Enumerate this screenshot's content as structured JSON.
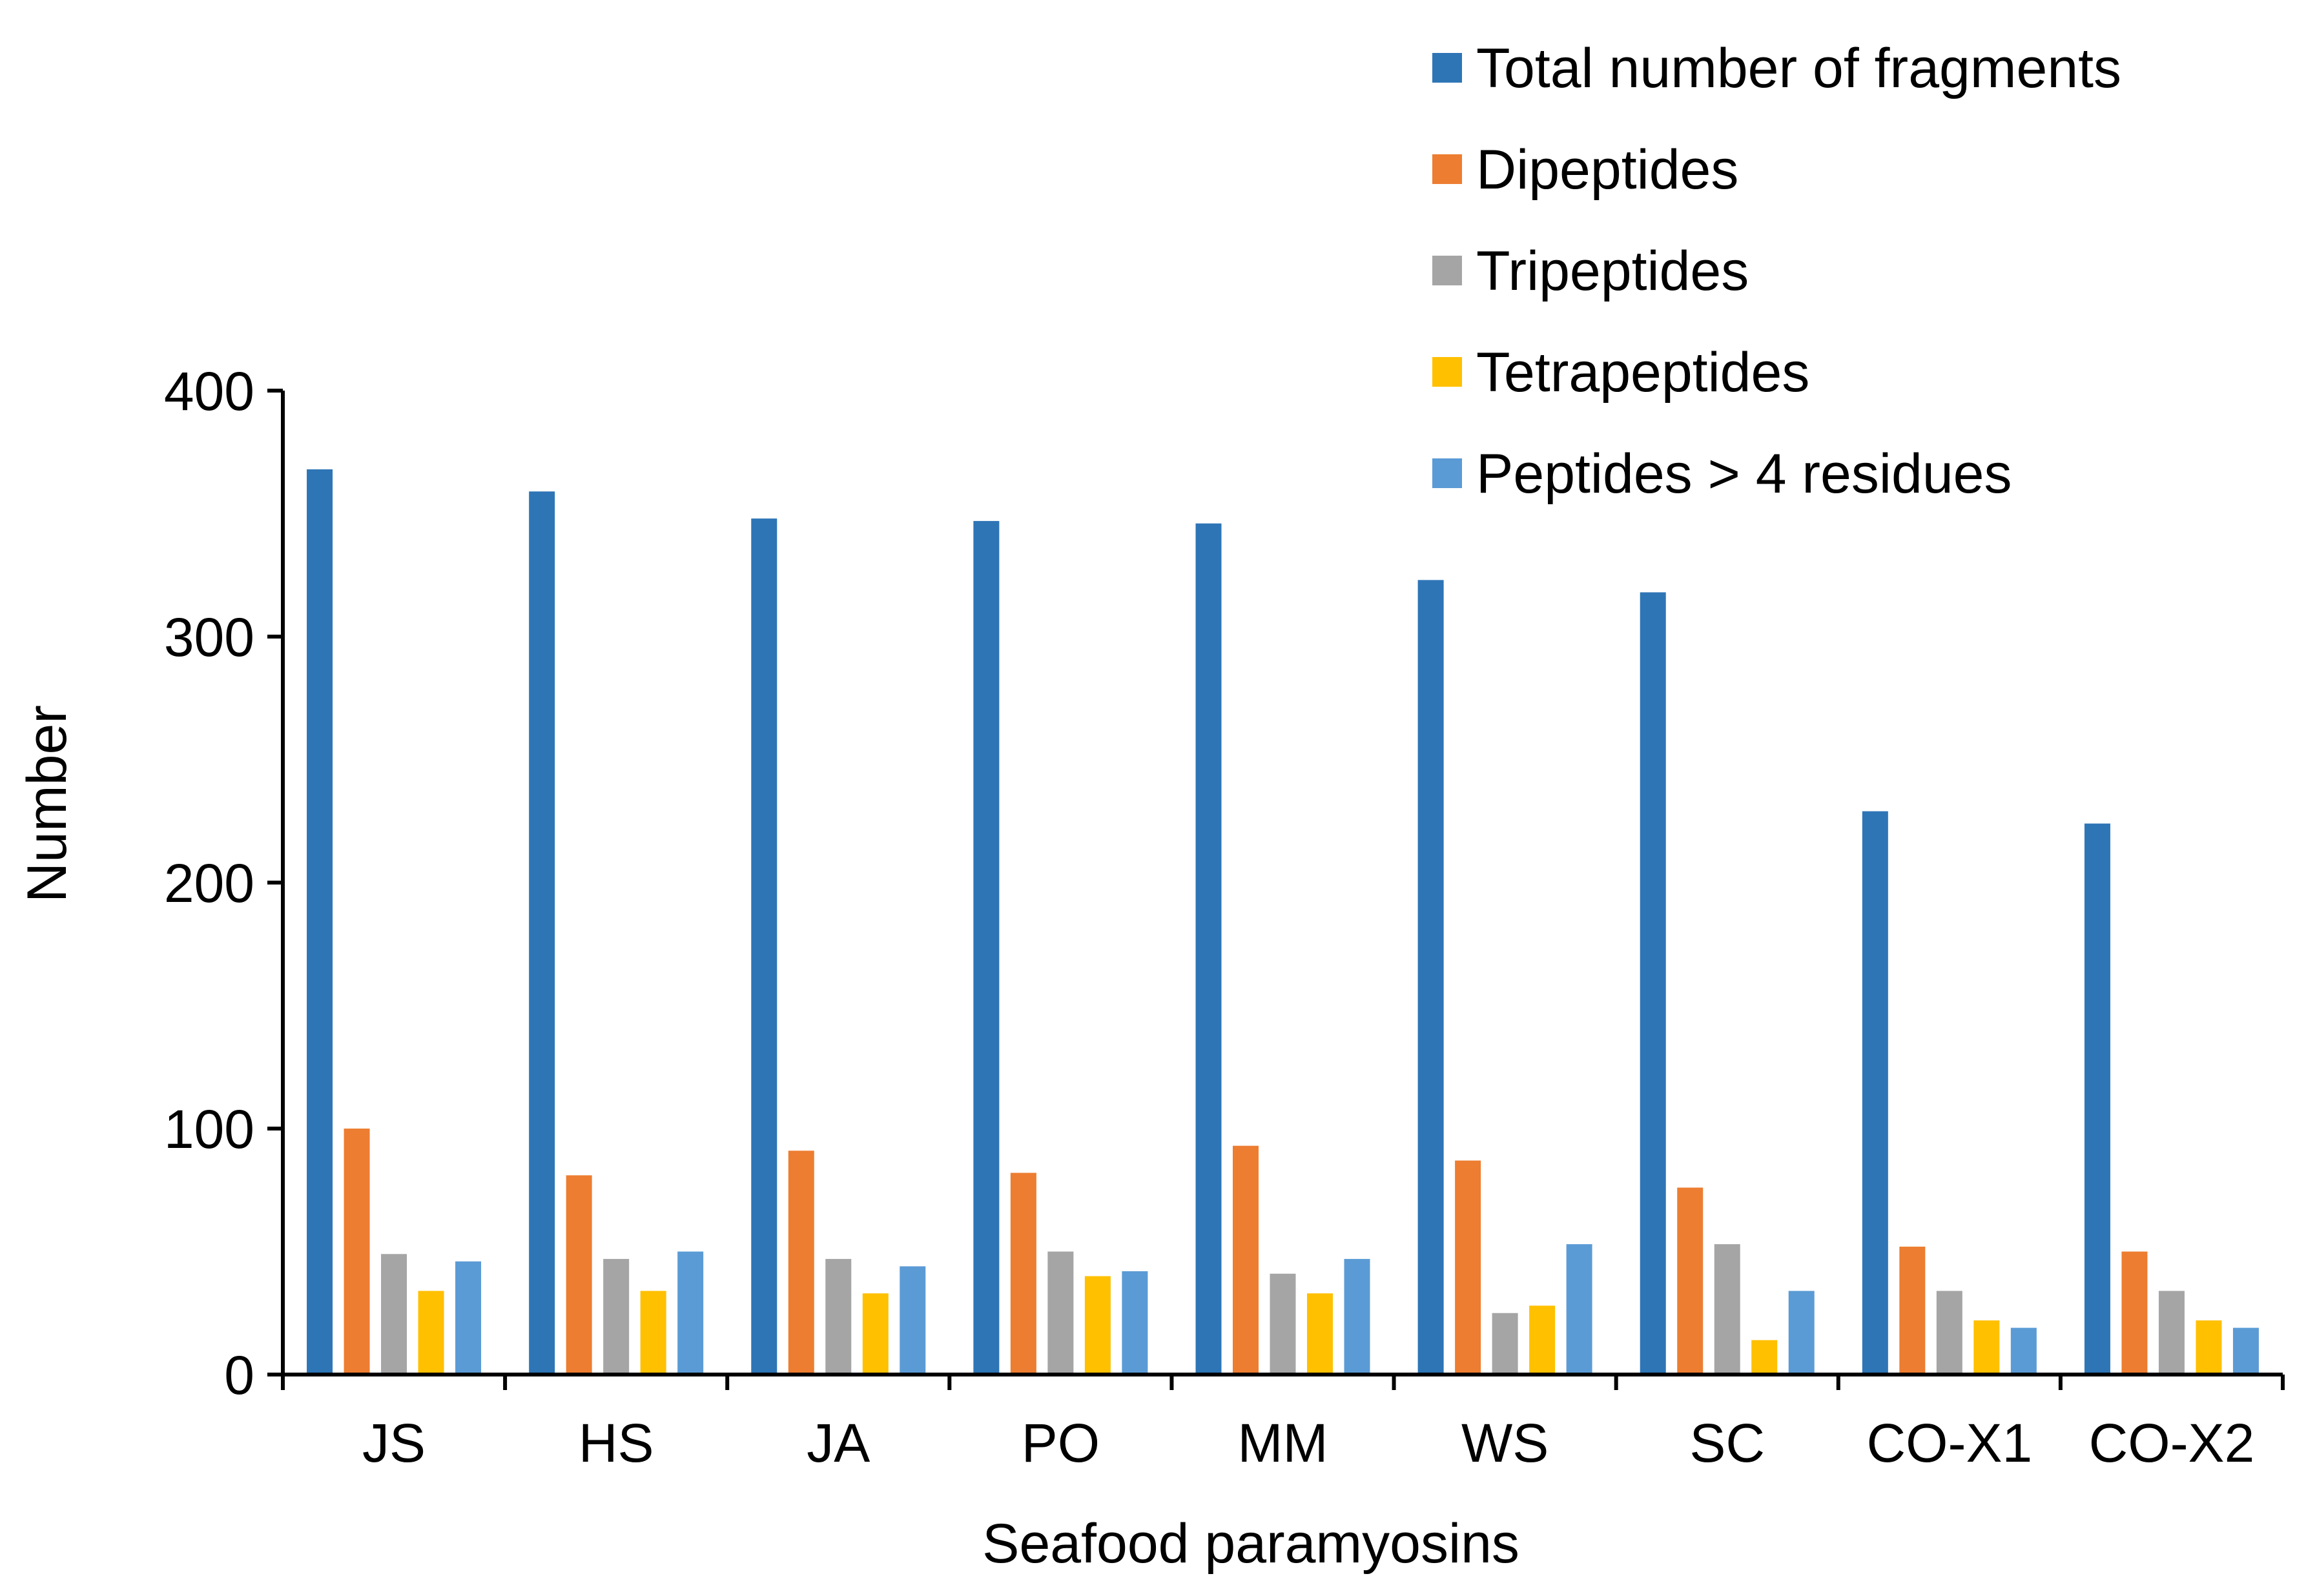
{
  "chart_data": {
    "type": "bar",
    "title": "",
    "xlabel": "Seafood paramyosins",
    "ylabel": "Number",
    "ylim": [
      0,
      400
    ],
    "yticks": [
      0,
      100,
      200,
      300,
      400
    ],
    "grid": false,
    "legend_position": "top-right",
    "categories": [
      "JS",
      "HS",
      "JA",
      "PO",
      "MM",
      "WS",
      "SC",
      "CO-X1",
      "CO-X2"
    ],
    "series": [
      {
        "name": "Total number of fragments",
        "color": "#2E75B6",
        "values": [
          368,
          359,
          348,
          347,
          346,
          323,
          318,
          229,
          224
        ]
      },
      {
        "name": "Dipeptides",
        "color": "#ED7D31",
        "values": [
          100,
          81,
          91,
          82,
          93,
          87,
          76,
          52,
          50
        ]
      },
      {
        "name": "Tripeptides",
        "color": "#A5A5A5",
        "values": [
          49,
          47,
          47,
          50,
          41,
          25,
          53,
          34,
          34
        ]
      },
      {
        "name": "Tetrapeptides",
        "color": "#FFC000",
        "values": [
          34,
          34,
          33,
          40,
          33,
          28,
          14,
          22,
          22
        ]
      },
      {
        "name": "Peptides > 4 residues",
        "color": "#5B9BD5",
        "values": [
          46,
          50,
          44,
          42,
          47,
          53,
          34,
          19,
          19
        ]
      }
    ]
  }
}
